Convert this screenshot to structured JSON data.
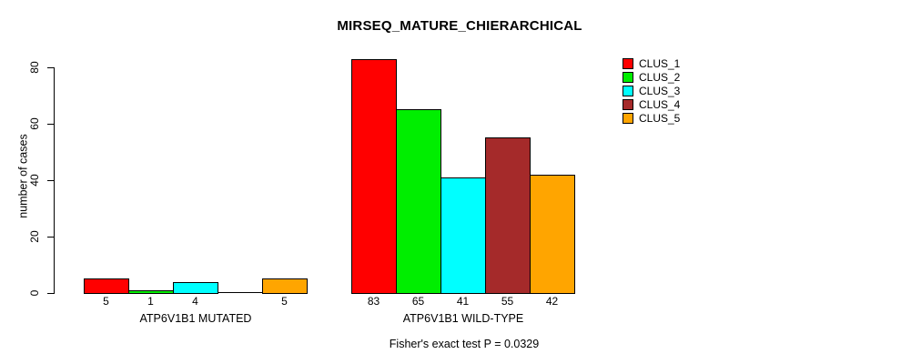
{
  "chart_data": {
    "type": "bar",
    "title": "MIRSEQ_MATURE_CHIERARCHICAL",
    "ylabel": "number of cases",
    "xlabel": "",
    "ylim": [
      0,
      80
    ],
    "yticks": [
      0,
      20,
      40,
      60,
      80
    ],
    "grid": false,
    "legend_position": "top-right",
    "categories": [
      "ATP6V1B1 MUTATED",
      "ATP6V1B1 WILD-TYPE"
    ],
    "series": [
      {
        "name": "CLUS_1",
        "color": "#FF0000",
        "values": [
          5,
          83
        ]
      },
      {
        "name": "CLUS_2",
        "color": "#00EE00",
        "values": [
          1,
          65
        ]
      },
      {
        "name": "CLUS_3",
        "color": "#00FFFF",
        "values": [
          4,
          41
        ]
      },
      {
        "name": "CLUS_4",
        "color": "#A52A2A",
        "values": [
          0,
          55
        ]
      },
      {
        "name": "CLUS_5",
        "color": "#FFA500",
        "values": [
          5,
          42
        ]
      }
    ],
    "bar_value_labels": [
      [
        "5",
        "1",
        "4",
        "",
        "5"
      ],
      [
        "83",
        "65",
        "41",
        "55",
        "42"
      ]
    ],
    "footnote": "Fisher's exact test P = 0.0329",
    "axis_color": "#000000",
    "background_color": "#FFFFFF"
  }
}
